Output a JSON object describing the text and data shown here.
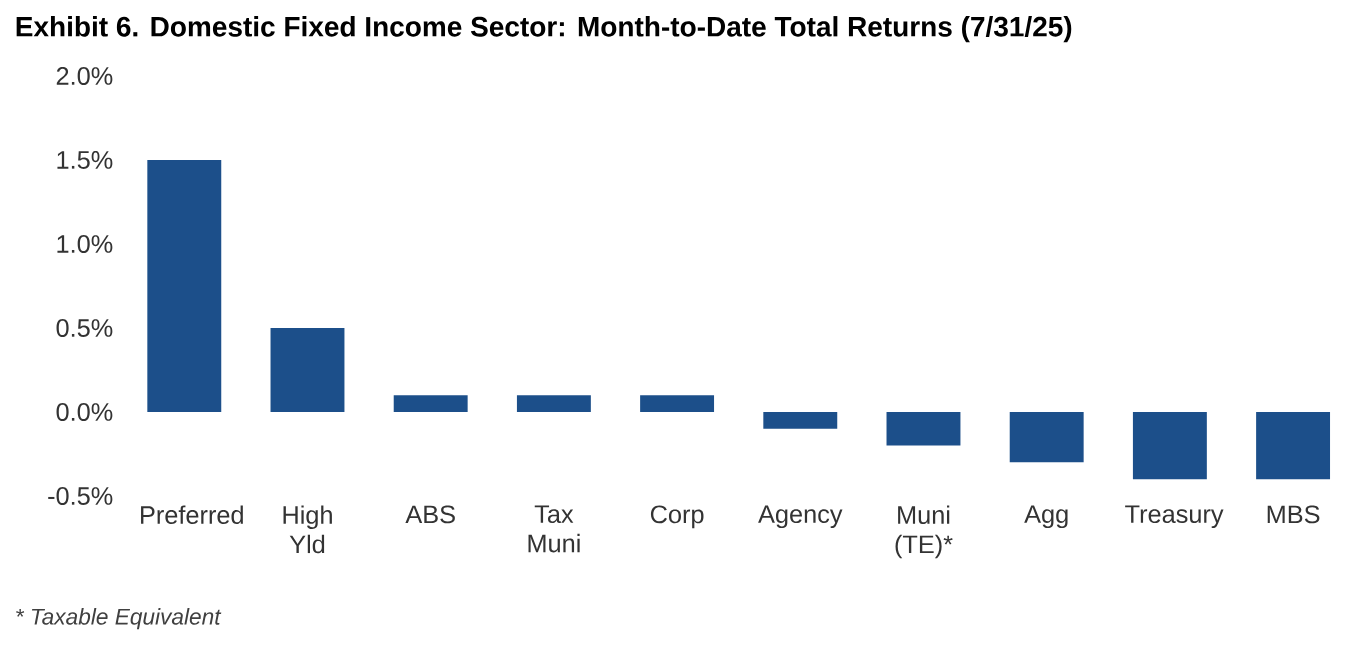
{
  "chart_data": {
    "type": "bar",
    "title": "Exhibit 6. Domestic Fixed Income Sector: Month-to-Date Total Returns (7/31/25)",
    "categories": [
      "Preferred",
      "High Yld",
      "ABS",
      "Tax Muni",
      "Corp",
      "Agency",
      "Muni (TE)*",
      "Agg",
      "Treasury",
      "MBS"
    ],
    "values": [
      1.5,
      0.5,
      0.1,
      0.1,
      0.1,
      -0.1,
      -0.2,
      -0.3,
      -0.4,
      -0.4
    ],
    "color": "#1c4f8a",
    "ylim": [
      -0.5,
      2.0
    ],
    "yticks": [
      {
        "value": -0.5,
        "label": "-0.5%"
      },
      {
        "value": 0,
        "label": "0.0%"
      },
      {
        "value": 0.5,
        "label": "0.5%"
      },
      {
        "value": 1.0,
        "label": "1.0%"
      },
      {
        "value": 1.5,
        "label": "1.5%"
      },
      {
        "value": 2.0,
        "label": "2.0%"
      }
    ],
    "annotations": [
      "* Taxable Equivalent"
    ]
  }
}
